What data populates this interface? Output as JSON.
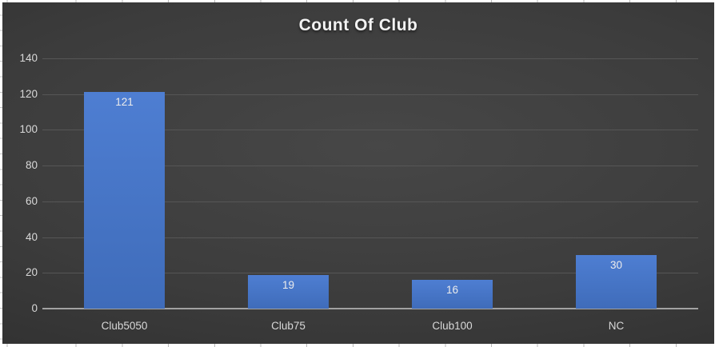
{
  "chart_data": {
    "type": "bar",
    "title": "Count Of Club",
    "categories": [
      "Club5050",
      "Club75",
      "Club100",
      "NC"
    ],
    "values": [
      121,
      19,
      16,
      30
    ],
    "series": [
      {
        "name": "Count Of Club",
        "values": [
          121,
          19,
          16,
          30
        ]
      }
    ],
    "xlabel": "",
    "ylabel": "",
    "ylim": [
      0,
      140
    ],
    "yticks": [
      0,
      20,
      40,
      60,
      80,
      100,
      120,
      140
    ],
    "grid": "horizontal",
    "legend": "none",
    "data_label_position": "inside-end",
    "colors": {
      "bar_top": "#4e7ed2",
      "bar_bottom": "#3f6cba",
      "gridline": "#565656",
      "axis_line": "#a2a2a2",
      "tick_text": "#d9d9d9",
      "data_label_text": "#ececec",
      "title_text": "#f2f2f2",
      "background_center": "#474747",
      "background_edge": "#2a2a2a"
    }
  }
}
